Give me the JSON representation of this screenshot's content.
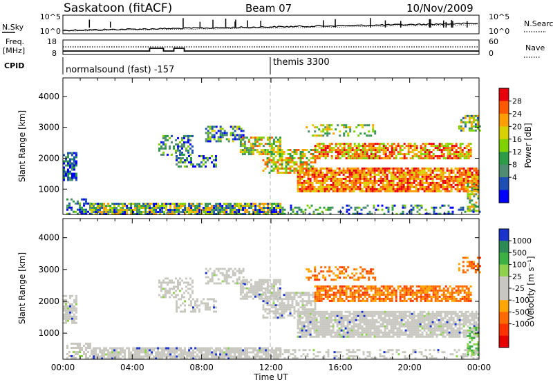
{
  "header": {
    "station": "Saskatoon (fitACF)",
    "beam": "Beam 07",
    "date": "10/Nov/2009"
  },
  "noise_panel": {
    "left_label": "N.Sky",
    "left_ticks": [
      "10^5",
      "10^0"
    ],
    "right_ticks": [
      "10^5",
      "10^0"
    ],
    "right_label": "N.Search"
  },
  "freq_panel": {
    "left_label_1": "Freq.",
    "left_label_2": "[MHz]",
    "left_ticks": [
      "18",
      "8"
    ],
    "right_ticks": [
      "60",
      "0"
    ],
    "right_label": "Nave"
  },
  "cpid": {
    "label": "CPID",
    "segments": [
      {
        "text": "normalsound (fast) -157",
        "start_hour": 0
      },
      {
        "text": "themis 3300",
        "start_hour": 12
      }
    ]
  },
  "chart_data": [
    {
      "type": "heatmap",
      "parameter": "power",
      "ylabel": "Slant Range [km]",
      "ylim": [
        180,
        4600
      ],
      "yticks": [
        1000,
        2000,
        3000,
        4000
      ],
      "xlim": [
        0,
        24
      ],
      "colorbar": {
        "label": "Power [dB]",
        "ticks": [
          "28",
          "24",
          "20",
          "16",
          "12",
          "8",
          "4"
        ],
        "colors": [
          "#e8000b",
          "#ff5a00",
          "#ff9e00",
          "#d8d000",
          "#7fd200",
          "#2e9b47",
          "#4f8c70",
          "#1e4fb5",
          "#0000ff"
        ]
      }
    },
    {
      "type": "heatmap",
      "parameter": "velocity",
      "ylabel": "Slant Range [km]",
      "ylim": [
        180,
        4600
      ],
      "yticks": [
        1000,
        2000,
        3000,
        4000
      ],
      "xlim": [
        0,
        24
      ],
      "colorbar": {
        "label": "Velocity [m s⁻¹]",
        "ticks": [
          "1000",
          "500",
          "100",
          "25",
          "-25",
          "-100",
          "-500",
          "-1000"
        ],
        "colors": [
          "#1a33cc",
          "#2e8b57",
          "#3cb043",
          "#8fd14f",
          "#c8c8c0",
          "#c8c8c0",
          "#ffa500",
          "#ff6a00",
          "#ff3300",
          "#e60000"
        ]
      }
    }
  ],
  "x_axis": {
    "ticks": [
      "00:00",
      "04:00",
      "08:00",
      "12:00",
      "16:00",
      "20:00",
      "00:00"
    ],
    "label": "Time UT"
  }
}
